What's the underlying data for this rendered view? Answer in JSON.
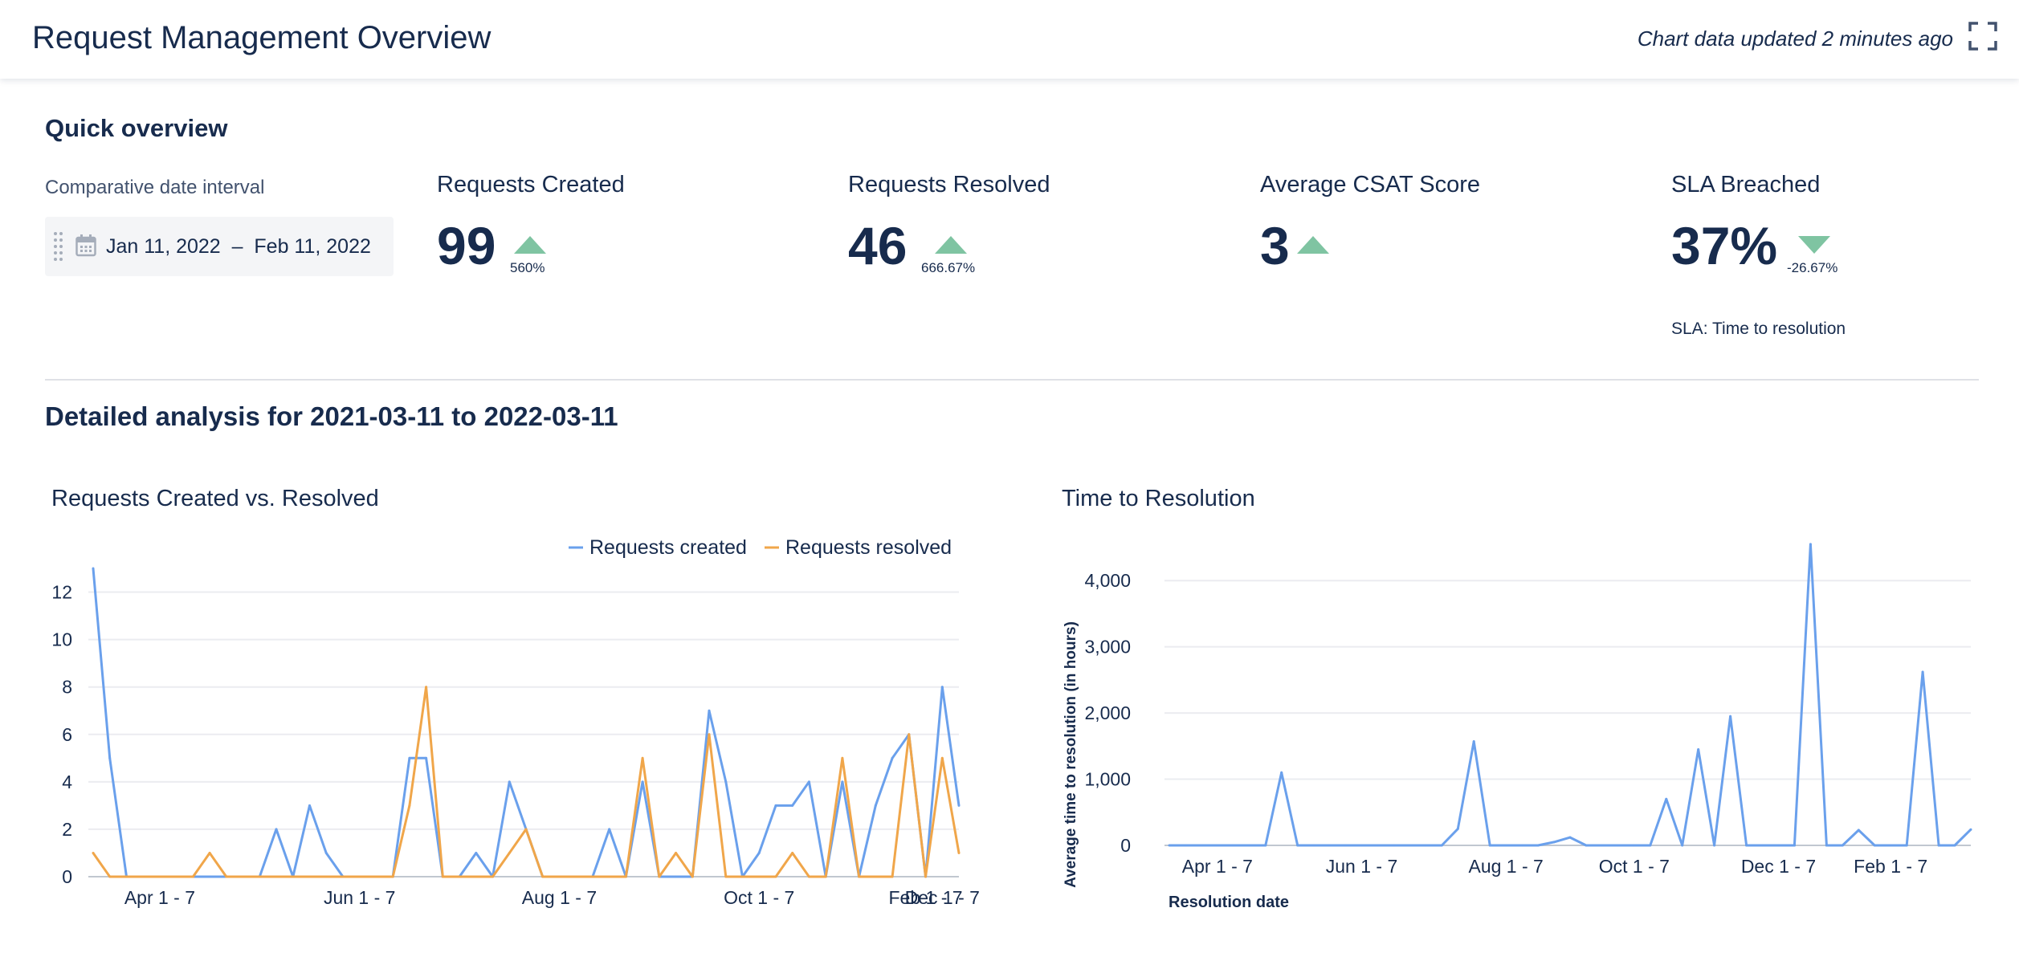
{
  "header": {
    "title": "Request Management Overview",
    "updated": "Chart data updated 2 minutes ago"
  },
  "quick_overview": {
    "title": "Quick overview",
    "interval_label": "Comparative date interval",
    "date_range": "Jan 11, 2022  –  Feb 11, 2022",
    "metrics": [
      {
        "label": "Requests Created",
        "value": "99",
        "trend": "up",
        "change": "560%"
      },
      {
        "label": "Requests Resolved",
        "value": "46",
        "trend": "up",
        "change": "666.67%"
      },
      {
        "label": "Average CSAT Score",
        "value": "3",
        "trend": "up",
        "change": ""
      },
      {
        "label": "SLA Breached",
        "value": "37%",
        "trend": "down",
        "change": "-26.67%",
        "note": "SLA: Time to resolution"
      }
    ],
    "colors": {
      "trend_up": "#7fc4a2",
      "trend_down": "#7fc4a2"
    }
  },
  "detailed": {
    "title": "Detailed analysis for 2021-03-11 to 2022-03-11"
  },
  "chart_data": [
    {
      "type": "line",
      "title": "Requests Created vs. Resolved",
      "x_tick_labels": [
        "Apr 1 - 7",
        "Jun 1 - 7",
        "Aug 1 - 7",
        "Oct 1 - 7",
        "Dec 1 - 7",
        "Feb 1 - 7"
      ],
      "ylim": [
        0,
        13
      ],
      "yticks": [
        0,
        2,
        4,
        6,
        8,
        10,
        12
      ],
      "legend_position": "top-right",
      "grid": true,
      "series": [
        {
          "name": "Requests created",
          "color": "#6aa0ec",
          "values": [
            13,
            5,
            0,
            0,
            0,
            0,
            0,
            0,
            0,
            0,
            0,
            2,
            0,
            3,
            1,
            0,
            0,
            0,
            0,
            5,
            5,
            0,
            0,
            1,
            0,
            4,
            2,
            0,
            0,
            0,
            0,
            2,
            0,
            4,
            0,
            0,
            0,
            7,
            4,
            0,
            1,
            3,
            3,
            4,
            0,
            4,
            0,
            3,
            5,
            6,
            0,
            8,
            3
          ]
        },
        {
          "name": "Requests resolved",
          "color": "#f0a64a",
          "values": [
            1,
            0,
            0,
            0,
            0,
            0,
            0,
            1,
            0,
            0,
            0,
            0,
            0,
            0,
            0,
            0,
            0,
            0,
            0,
            3,
            8,
            0,
            0,
            0,
            0,
            1,
            2,
            0,
            0,
            0,
            0,
            0,
            0,
            5,
            0,
            1,
            0,
            6,
            0,
            0,
            0,
            0,
            1,
            0,
            0,
            5,
            0,
            0,
            0,
            6,
            0,
            5,
            1
          ]
        }
      ]
    },
    {
      "type": "line",
      "title": "Time to Resolution",
      "xlabel": "Resolution date",
      "ylabel": "Average time to resolution (in hours)",
      "x_tick_labels": [
        "Apr 1 - 7",
        "Jun 1 - 7",
        "Aug 1 - 7",
        "Oct 1 - 7",
        "Dec 1 - 7",
        "Feb 1 - 7"
      ],
      "ylim": [
        0,
        4500
      ],
      "yticks": [
        0,
        1000,
        2000,
        3000,
        4000
      ],
      "ytick_labels": [
        "0",
        "1,000",
        "2,000",
        "3,000",
        "4,000"
      ],
      "grid": true,
      "series": [
        {
          "color": "#6aa0ec",
          "values": [
            0,
            0,
            0,
            0,
            0,
            0,
            0,
            1100,
            0,
            0,
            0,
            0,
            0,
            0,
            0,
            0,
            0,
            0,
            250,
            1570,
            0,
            0,
            0,
            0,
            50,
            120,
            0,
            0,
            0,
            0,
            0,
            700,
            0,
            1450,
            0,
            1950,
            0,
            0,
            0,
            0,
            4550,
            0,
            0,
            230,
            0,
            0,
            0,
            2620,
            0,
            0,
            240
          ]
        }
      ]
    }
  ]
}
